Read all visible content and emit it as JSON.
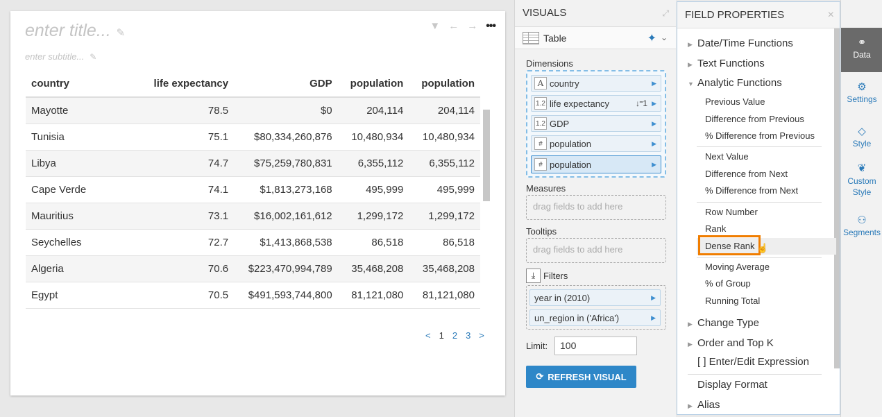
{
  "visual": {
    "title_placeholder": "enter title...",
    "subtitle_placeholder": "enter subtitle...",
    "columns": [
      "country",
      "life expectancy",
      "GDP",
      "population",
      "population"
    ],
    "rows": [
      [
        "Mayotte",
        "78.5",
        "$0",
        "204,114",
        "204,114"
      ],
      [
        "Tunisia",
        "75.1",
        "$80,334,260,876",
        "10,480,934",
        "10,480,934"
      ],
      [
        "Libya",
        "74.7",
        "$75,259,780,831",
        "6,355,112",
        "6,355,112"
      ],
      [
        "Cape Verde",
        "74.1",
        "$1,813,273,168",
        "495,999",
        "495,999"
      ],
      [
        "Mauritius",
        "73.1",
        "$16,002,161,612",
        "1,299,172",
        "1,299,172"
      ],
      [
        "Seychelles",
        "72.7",
        "$1,413,868,538",
        "86,518",
        "86,518"
      ],
      [
        "Algeria",
        "70.6",
        "$223,470,994,789",
        "35,468,208",
        "35,468,208"
      ],
      [
        "Egypt",
        "70.5",
        "$491,593,744,800",
        "81,121,080",
        "81,121,080"
      ]
    ],
    "pager": {
      "prev": "<",
      "pages": [
        "1",
        "2",
        "3"
      ],
      "next": ">"
    }
  },
  "visuals_panel": {
    "header": "VISUALS",
    "type_label": "Table",
    "dimensions_label": "Dimensions",
    "dimensions": [
      {
        "type": "A",
        "label": "country"
      },
      {
        "type": "1.2",
        "label": "life expectancy",
        "sort": "↓⁼1"
      },
      {
        "type": "1.2",
        "label": "GDP"
      },
      {
        "type": "#",
        "label": "population"
      },
      {
        "type": "#",
        "label": "population"
      }
    ],
    "measures_label": "Measures",
    "measures_placeholder": "drag fields to add here",
    "tooltips_label": "Tooltips",
    "tooltips_placeholder": "drag fields to add here",
    "filters_label": "Filters",
    "filters": [
      "year in (2010)",
      "un_region in ('Africa')"
    ],
    "limit_label": "Limit:",
    "limit_value": "100",
    "refresh_label": "REFRESH VISUAL"
  },
  "field_properties": {
    "header": "FIELD PROPERTIES",
    "groups": {
      "datetime": "Date/Time Functions",
      "text": "Text Functions",
      "analytic": "Analytic Functions",
      "change_type": "Change Type",
      "order_topk": "Order and Top K",
      "enter_edit": "[ ] Enter/Edit Expression",
      "display_format": "Display Format",
      "alias": "Alias"
    },
    "analytic_items": [
      "Previous Value",
      "Difference from Previous",
      "% Difference from Previous",
      "Next Value",
      "Difference from Next",
      "% Difference from Next",
      "Row Number",
      "Rank",
      "Dense Rank",
      "Moving Average",
      "% of Group",
      "Running Total"
    ],
    "highlighted": "Dense Rank"
  },
  "right_nav": {
    "items": [
      {
        "label": "Data",
        "icon": "data-icon",
        "active": true
      },
      {
        "label": "Settings",
        "icon": "settings-icon"
      },
      {
        "label": "Style",
        "icon": "style-icon"
      },
      {
        "label": "Custom Style",
        "icon": "custom-style-icon"
      },
      {
        "label": "Segments",
        "icon": "segments-icon"
      }
    ]
  },
  "colors": {
    "accent": "#2e87c8",
    "highlight_border": "#f07d00",
    "nav_active": "#6a6a6a"
  }
}
